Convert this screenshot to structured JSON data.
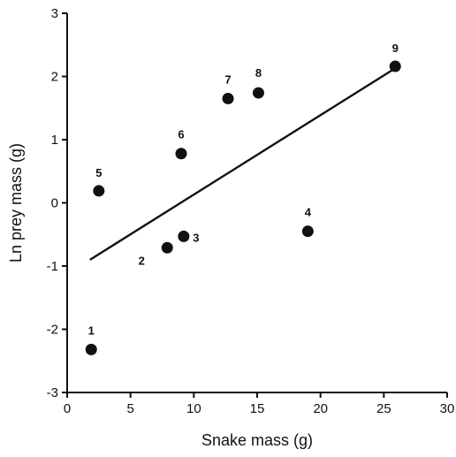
{
  "chart_data": {
    "type": "scatter",
    "title": "",
    "xlabel": "Snake mass (g)",
    "ylabel": "Ln prey mass (g)",
    "xlim": [
      0,
      30
    ],
    "ylim": [
      -3,
      3
    ],
    "xticks": [
      0,
      5,
      10,
      15,
      20,
      25,
      30
    ],
    "yticks": [
      -3,
      -2,
      -1,
      0,
      1,
      2,
      3
    ],
    "x_tick_labels": [
      "0",
      "5",
      "10",
      "15",
      "20",
      "25",
      "30"
    ],
    "y_tick_labels": [
      "-3",
      "-2",
      "-1",
      "0",
      "1",
      "2",
      "3"
    ],
    "grid": false,
    "points": [
      {
        "label": "1",
        "x": 1.9,
        "y": -2.32
      },
      {
        "label": "2",
        "x": 7.9,
        "y": -0.71
      },
      {
        "label": "3",
        "x": 9.2,
        "y": -0.53
      },
      {
        "label": "4",
        "x": 19.0,
        "y": -0.45
      },
      {
        "label": "5",
        "x": 2.5,
        "y": 0.19
      },
      {
        "label": "6",
        "x": 9.0,
        "y": 0.78
      },
      {
        "label": "7",
        "x": 12.7,
        "y": 1.65
      },
      {
        "label": "8",
        "x": 15.1,
        "y": 1.74
      },
      {
        "label": "9",
        "x": 25.9,
        "y": 2.16
      }
    ],
    "trendline": {
      "x": [
        1.8,
        25.9
      ],
      "y": [
        -0.9,
        2.13
      ]
    }
  }
}
